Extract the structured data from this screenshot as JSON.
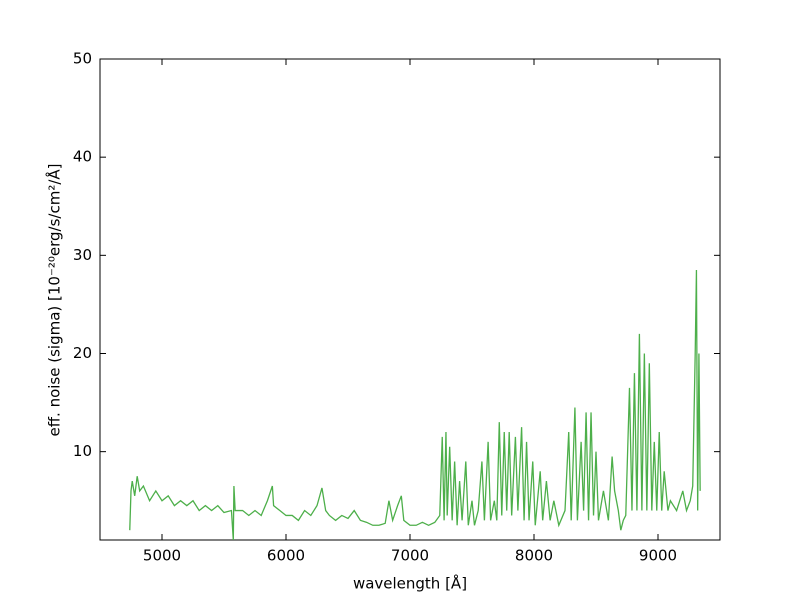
{
  "chart_data": {
    "type": "line",
    "x_label": "wavelength [Å]",
    "y_label": "eff. noise  (sigma)  [10⁻²⁰erg/s/cm²/Å]",
    "xlim": [
      4500,
      9500
    ],
    "xticks": [
      5000,
      6000,
      7000,
      8000,
      9000
    ],
    "ylim": [
      1,
      50
    ],
    "yticks": [
      10,
      20,
      30,
      40,
      50
    ],
    "series": [
      {
        "color": "#4daf4a",
        "x": [
          4740,
          4750,
          4760,
          4780,
          4800,
          4820,
          4850,
          4900,
          4950,
          5000,
          5050,
          5100,
          5150,
          5200,
          5250,
          5300,
          5350,
          5400,
          5450,
          5500,
          5560,
          5575,
          5580,
          5590,
          5650,
          5700,
          5750,
          5800,
          5850,
          5890,
          5900,
          5950,
          6000,
          6050,
          6100,
          6150,
          6200,
          6250,
          6290,
          6320,
          6350,
          6400,
          6450,
          6500,
          6550,
          6600,
          6650,
          6700,
          6750,
          6800,
          6830,
          6860,
          6900,
          6930,
          6950,
          7000,
          7050,
          7100,
          7150,
          7200,
          7240,
          7260,
          7275,
          7290,
          7300,
          7320,
          7340,
          7360,
          7380,
          7400,
          7420,
          7450,
          7470,
          7500,
          7520,
          7550,
          7580,
          7600,
          7630,
          7650,
          7680,
          7700,
          7720,
          7740,
          7760,
          7780,
          7800,
          7820,
          7850,
          7870,
          7900,
          7920,
          7940,
          7960,
          7990,
          8010,
          8050,
          8070,
          8100,
          8130,
          8160,
          8200,
          8250,
          8280,
          8300,
          8330,
          8350,
          8380,
          8400,
          8420,
          8440,
          8460,
          8480,
          8500,
          8520,
          8560,
          8600,
          8630,
          8650,
          8680,
          8700,
          8720,
          8740,
          8770,
          8790,
          8810,
          8830,
          8850,
          8870,
          8890,
          8910,
          8930,
          8950,
          8970,
          8990,
          9010,
          9030,
          9050,
          9080,
          9100,
          9150,
          9200,
          9230,
          9260,
          9280,
          9300,
          9310,
          9320,
          9330,
          9340
        ],
        "values": [
          2,
          6,
          7,
          5.5,
          7.5,
          6,
          6.5,
          5,
          6,
          5,
          5.5,
          4.5,
          5,
          4.5,
          5,
          4,
          4.5,
          4,
          4.5,
          3.8,
          4,
          1,
          6.5,
          4,
          4,
          3.5,
          4,
          3.5,
          5,
          6.5,
          4.5,
          4,
          3.5,
          3.5,
          3,
          4,
          3.5,
          4.5,
          6.3,
          4,
          3.5,
          3,
          3.5,
          3.2,
          4,
          3,
          2.8,
          2.5,
          2.5,
          2.7,
          5,
          3,
          4.5,
          5.5,
          3,
          2.5,
          2.5,
          2.8,
          2.5,
          2.8,
          3.5,
          11.5,
          3,
          12,
          3.5,
          10.5,
          3,
          9,
          2.5,
          7,
          3,
          9,
          2.5,
          5,
          2.5,
          4,
          9,
          3,
          11,
          3,
          5,
          3,
          13,
          3.5,
          12,
          4,
          12,
          3.5,
          11.5,
          4,
          12.5,
          3,
          11,
          3,
          9,
          2.5,
          8,
          3,
          7,
          3,
          5,
          2.5,
          4,
          12,
          3,
          14.5,
          3,
          11,
          4,
          14,
          3,
          14,
          3.5,
          10,
          3,
          6,
          3,
          9.5,
          6,
          4,
          2,
          3,
          3.5,
          16.5,
          4,
          18,
          4,
          22,
          4,
          20,
          4,
          19,
          4,
          11,
          4,
          12,
          4,
          8,
          4,
          5,
          4,
          6,
          4,
          5,
          6.5,
          20,
          28.5,
          4,
          20,
          6
        ]
      }
    ]
  }
}
